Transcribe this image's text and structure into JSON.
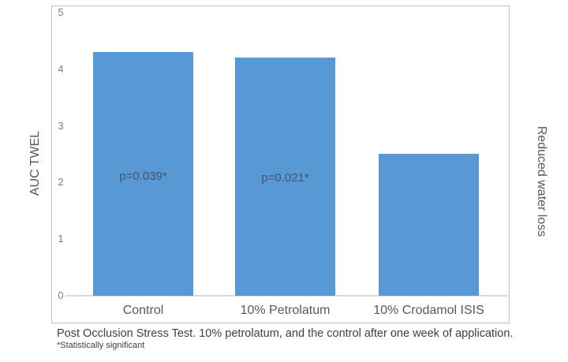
{
  "chart_data": {
    "type": "bar",
    "categories": [
      "Control",
      "10% Petrolatum",
      "10% Crodamol ISIS"
    ],
    "values": [
      4.3,
      4.2,
      2.5
    ],
    "bar_labels": [
      "p=0.039*",
      "p=0.021*",
      ""
    ],
    "title": "",
    "xlabel": "",
    "ylabel": "AUC TWEL",
    "right_axis_label": "Reduced water loss",
    "ylim": [
      0,
      5
    ],
    "yticks": [
      0,
      1,
      2,
      3,
      4,
      5
    ],
    "grid": "zero-baseline-only",
    "legend": "none",
    "bar_color": "#5899D5",
    "frame_border_color": "#b5c3d7",
    "baseline_color": "#d9d9d9",
    "caption": "Post Occlusion Stress Test. 10% petrolatum, and the control after one week of application.",
    "footnote": "*Statistically significant"
  }
}
